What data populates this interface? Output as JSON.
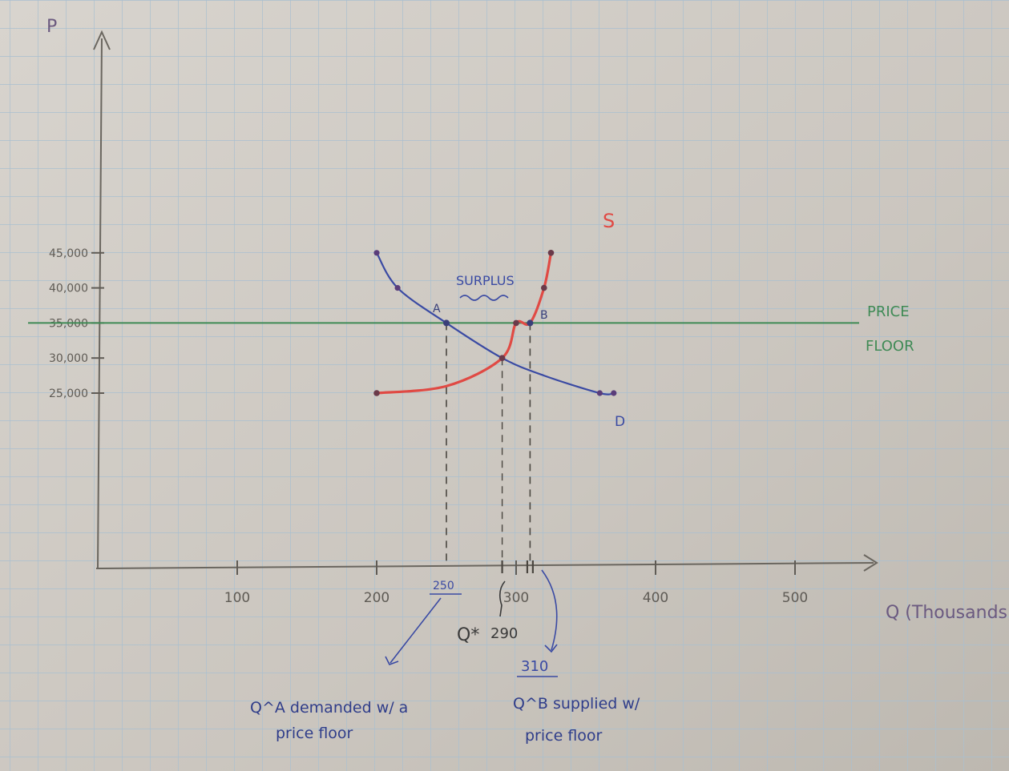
{
  "chart_data": {
    "type": "line",
    "ylabel": "P",
    "xlabel": "Q (Thousands)",
    "xlim": [
      0,
      550
    ],
    "ylim": [
      0,
      55000
    ],
    "x_ticks": [
      100,
      200,
      300,
      400,
      500
    ],
    "x_tick_labels": [
      "100",
      "200",
      "300",
      "400",
      "500"
    ],
    "y_ticks": [
      25000,
      30000,
      35000,
      40000,
      45000
    ],
    "y_tick_labels": [
      "25,000",
      "30,000",
      "35,000",
      "40,000",
      "45,000"
    ],
    "series": [
      {
        "name": "D",
        "color": "#3a4aa3",
        "x": [
          200,
          215,
          250,
          290,
          320,
          360,
          370
        ],
        "y": [
          45000,
          40000,
          35000,
          30000,
          27500,
          25000,
          25000
        ]
      },
      {
        "name": "S",
        "color": "#e04a44",
        "x": [
          200,
          250,
          290,
          300,
          310,
          320,
          325
        ],
        "y": [
          25000,
          26000,
          30000,
          35000,
          35000,
          40000,
          45000
        ]
      }
    ],
    "price_floor": {
      "label_line1": "PRICE",
      "label_line2": "FLOOR",
      "y": 35000,
      "color": "#3f8a55"
    },
    "points": [
      {
        "label": "A",
        "x": 250,
        "y": 35000
      },
      {
        "label": "B",
        "x": 310,
        "y": 35000
      }
    ],
    "annotations": {
      "surplus": "SURPLUS",
      "qa_value": "250",
      "qstar_label": "Q*",
      "qstar_value": "290",
      "qb_value": "310",
      "qa_note_line1": "Q^A demanded w/ a",
      "qa_note_line2": "price floor",
      "qb_note_line1": "Q^B supplied w/",
      "qb_note_line2": "price floor"
    }
  }
}
